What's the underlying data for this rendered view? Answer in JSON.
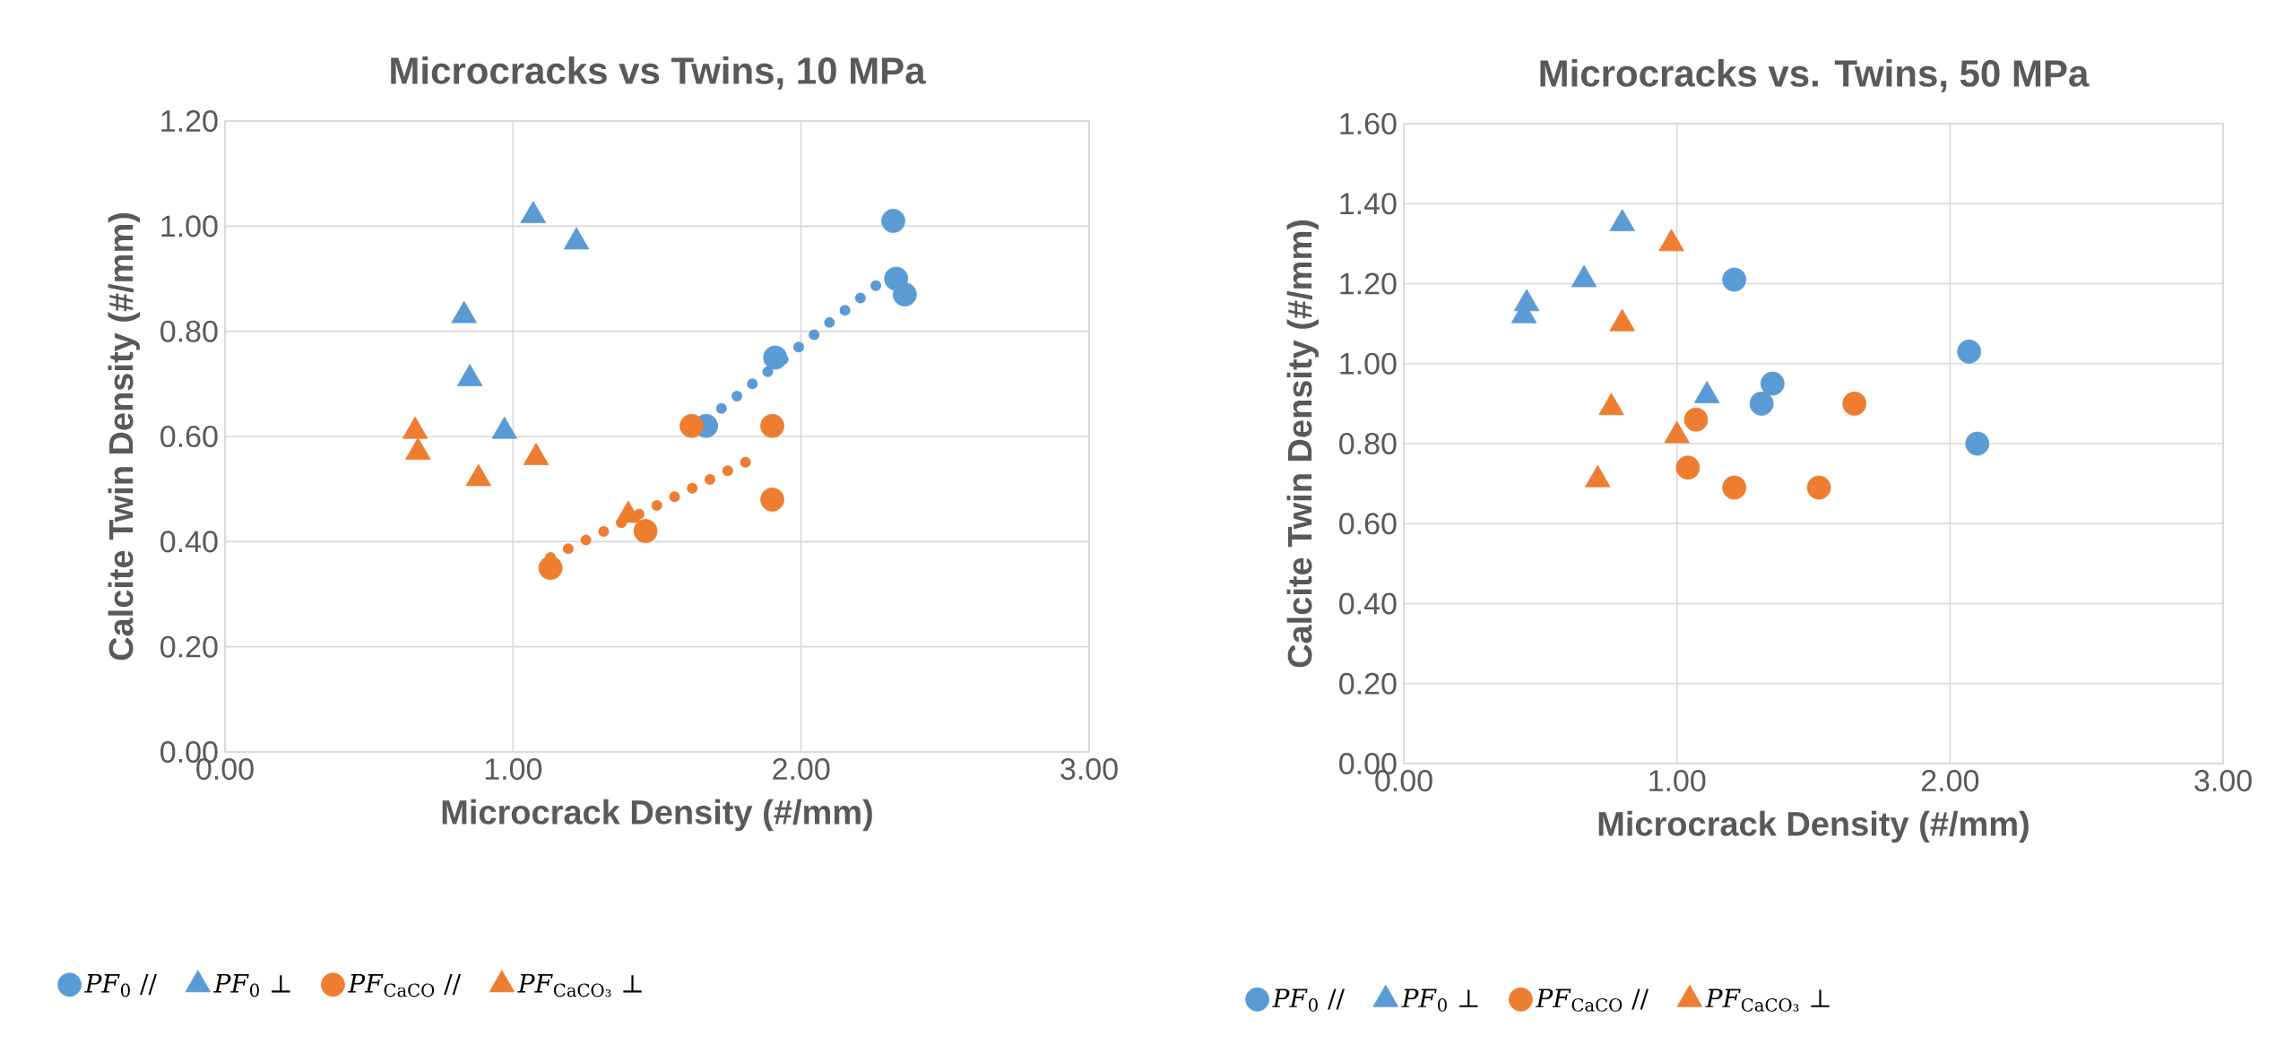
{
  "chart_data": [
    {
      "type": "scatter",
      "title": "Microcracks vs Twins, 10 MPa",
      "xlabel": "Microcrack Density (#/mm)",
      "ylabel": "Calcite Twin Density (#/mm)",
      "xlim": [
        0,
        3
      ],
      "ylim": [
        0,
        1.2
      ],
      "xticks": [
        {
          "value": 0,
          "label": "0.00"
        },
        {
          "value": 1,
          "label": "1.00"
        },
        {
          "value": 2,
          "label": "2.00"
        },
        {
          "value": 3,
          "label": "3.00"
        }
      ],
      "yticks": [
        {
          "value": 0,
          "label": "0.00"
        },
        {
          "value": 0.2,
          "label": "0.20"
        },
        {
          "value": 0.4,
          "label": "0.40"
        },
        {
          "value": 0.6,
          "label": "0.60"
        },
        {
          "value": 0.8,
          "label": "0.80"
        },
        {
          "value": 1.0,
          "label": "1.00"
        },
        {
          "value": 1.2,
          "label": "1.20"
        }
      ],
      "grid": true,
      "legend": "bottom",
      "series": [
        {
          "name": "*PF*$_{0}$  //",
          "color": "#5b9bd5",
          "marker": "circle",
          "x": [
            2.32,
            2.33,
            2.36,
            1.91,
            1.67
          ],
          "values": [
            1.01,
            0.9,
            0.87,
            0.75,
            0.62
          ]
        },
        {
          "name": "*PF*$_{0}$  ⊥",
          "color": "#5b9bd5",
          "marker": "triangle",
          "x": [
            1.07,
            1.22,
            0.83,
            0.85,
            0.97
          ],
          "values": [
            1.02,
            0.97,
            0.83,
            0.71,
            0.61
          ]
        },
        {
          "name": "*PF*$_{CaCO}$ //",
          "color": "#ed7d31",
          "marker": "circle",
          "x": [
            1.62,
            1.9,
            1.9,
            1.46,
            1.13
          ],
          "values": [
            0.62,
            0.62,
            0.48,
            0.42,
            0.35
          ]
        },
        {
          "name": "*PF*$_{CaCO₃}$ ⊥",
          "color": "#ed7d31",
          "marker": "triangle",
          "x": [
            0.66,
            0.67,
            0.88,
            1.08,
            1.4
          ],
          "values": [
            0.61,
            0.57,
            0.52,
            0.56,
            0.45
          ]
        },
        {
          "type": "line",
          "line_style": "dotted",
          "marker": "none",
          "color": "#5b9bd5",
          "x": [
            1.67,
            2.29
          ],
          "values": [
            0.63,
            0.9
          ]
        },
        {
          "type": "line",
          "line_style": "dotted",
          "marker": "none",
          "color": "#ed7d31",
          "x": [
            1.13,
            1.84
          ],
          "values": [
            0.37,
            0.56
          ]
        }
      ]
    },
    {
      "type": "scatter",
      "title": "Microcracks vs. Twins, 50 MPa",
      "xlabel": "Microcrack Density (#/mm)",
      "ylabel": "Calcite Twin Density (#/mm)",
      "xlim": [
        0,
        3
      ],
      "ylim": [
        0,
        1.6
      ],
      "xticks": [
        {
          "value": 0,
          "label": "0.00"
        },
        {
          "value": 1,
          "label": "1.00"
        },
        {
          "value": 2,
          "label": "2.00"
        },
        {
          "value": 3,
          "label": "3.00"
        }
      ],
      "yticks": [
        {
          "value": 0,
          "label": "0.00"
        },
        {
          "value": 0.2,
          "label": "0.20"
        },
        {
          "value": 0.4,
          "label": "0.40"
        },
        {
          "value": 0.6,
          "label": "0.60"
        },
        {
          "value": 0.8,
          "label": "0.80"
        },
        {
          "value": 1.0,
          "label": "1.00"
        },
        {
          "value": 1.2,
          "label": "1.20"
        },
        {
          "value": 1.4,
          "label": "1.40"
        },
        {
          "value": 1.6,
          "label": "1.60"
        }
      ],
      "grid": true,
      "legend": "bottom",
      "series": [
        {
          "name": "*PF*$_{0}$  //",
          "color": "#5b9bd5",
          "marker": "circle",
          "x": [
            1.21,
            2.07,
            1.35,
            1.31,
            2.1
          ],
          "values": [
            1.21,
            1.03,
            0.95,
            0.9,
            0.8
          ]
        },
        {
          "name": "*PF*$_{0}$  ⊥",
          "color": "#5b9bd5",
          "marker": "triangle",
          "x": [
            0.8,
            0.66,
            0.45,
            0.44,
            1.11
          ],
          "values": [
            1.35,
            1.21,
            1.15,
            1.12,
            0.92
          ]
        },
        {
          "name": "*PF*$_{CaCO}$ //",
          "color": "#ed7d31",
          "marker": "circle",
          "x": [
            1.65,
            1.07,
            1.04,
            1.21,
            1.52
          ],
          "values": [
            0.9,
            0.86,
            0.74,
            0.69,
            0.69
          ]
        },
        {
          "name": "*PF*$_{CaCO₃}$ ⊥",
          "color": "#ed7d31",
          "marker": "triangle",
          "x": [
            0.98,
            0.8,
            0.76,
            1.0,
            0.71
          ],
          "values": [
            1.3,
            1.1,
            0.89,
            0.82,
            0.71
          ]
        }
      ]
    }
  ]
}
